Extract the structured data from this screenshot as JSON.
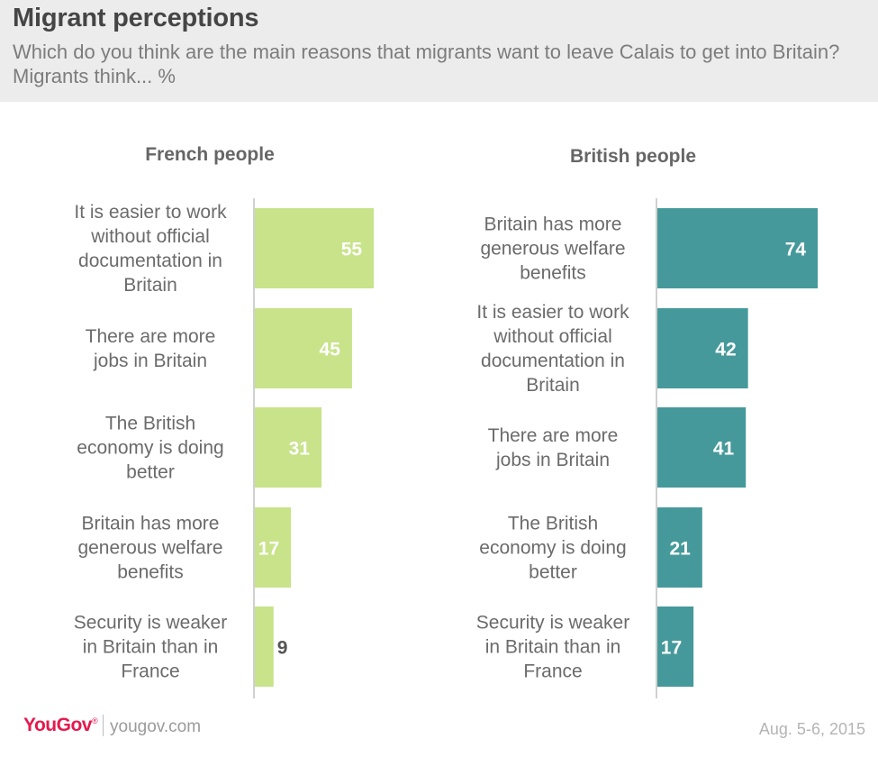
{
  "header": {
    "title": "Migrant perceptions",
    "subtitle": "Which do you think are the main reasons that migrants want to leave Calais to get into Britain? Migrants think... %"
  },
  "colors": {
    "french_bar": "#c8e38a",
    "british_bar": "#46999a",
    "label_text": "#6b6b6b",
    "heading_text": "#666666",
    "axis_line": "#d0d0d0"
  },
  "chart_data": [
    {
      "type": "bar",
      "orientation": "horizontal",
      "title": "French people",
      "categories": [
        "It is easier to work without official documentation in Britain",
        "There are more jobs in Britain",
        "The British economy is doing better",
        "Britain has more generous welfare benefits",
        "Security is weaker in Britain than in France"
      ],
      "values": [
        55,
        45,
        31,
        17,
        9
      ],
      "data_labels": [
        "55",
        "45",
        "31",
        "17",
        "9"
      ]
    },
    {
      "type": "bar",
      "orientation": "horizontal",
      "title": "British people",
      "categories": [
        "Britain has more generous welfare benefits",
        "It is easier to work without official documentation in Britain",
        "There are more jobs in Britain",
        "The British economy is doing better",
        "Security is weaker in Britain than in France"
      ],
      "values": [
        74,
        42,
        41,
        21,
        17
      ],
      "data_labels": [
        "74",
        "42",
        "41",
        "21",
        "17"
      ]
    }
  ],
  "footer": {
    "brand": "YouGov",
    "brand_mark": "®",
    "site": "yougov.com",
    "date": "Aug. 5-6, 2015"
  }
}
